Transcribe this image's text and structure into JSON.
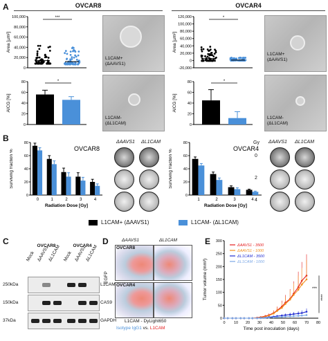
{
  "panels": {
    "A": "A",
    "B": "B",
    "C": "C",
    "D": "D",
    "E": "E"
  },
  "headers": {
    "left": "OVCAR8",
    "right": "OVCAR4"
  },
  "chart_data": [
    {
      "id": "a1",
      "type": "scatter",
      "title": "",
      "ylabel": "Area [µm²]",
      "ylim": [
        0,
        100000
      ],
      "yticks": [
        "0",
        "20,000",
        "40,000",
        "60,000",
        "80,000",
        "100,000"
      ],
      "significance": "***",
      "series": [
        {
          "name": "L1CAM+ (ΔAAVS1)",
          "color": "#000000",
          "mean": 14000,
          "sd": 10000
        },
        {
          "name": "L1CAM- (ΔL1CAM)",
          "color": "#4a90d9",
          "mean": 12000,
          "sd": 9000
        }
      ]
    },
    {
      "id": "a2",
      "type": "bar",
      "ylabel": "AICG [%]",
      "ylim": [
        0,
        80
      ],
      "yticks": [
        "0",
        "20",
        "40",
        "60",
        "80"
      ],
      "significance": "*",
      "values": [
        56,
        46
      ],
      "errors": [
        8,
        6
      ],
      "colors": [
        "#000000",
        "#4a90d9"
      ]
    },
    {
      "id": "a3",
      "type": "scatter",
      "ylabel": "Area [µm²]",
      "ylim": [
        -20000,
        120000
      ],
      "yticks": [
        "-20,000",
        "0",
        "20,000",
        "40,000",
        "60,000",
        "80,000",
        "100,000",
        "120,000"
      ],
      "significance": "*",
      "series": [
        {
          "name": "L1CAM+ (ΔAAVS1)",
          "color": "#000000",
          "mean": 5000,
          "sd": 10000
        },
        {
          "name": "L1CAM- (ΔL1CAM)",
          "color": "#4a90d9",
          "mean": 1000,
          "sd": 2000
        }
      ]
    },
    {
      "id": "a4",
      "type": "bar",
      "ylabel": "AICG [%]",
      "ylim": [
        0,
        80
      ],
      "yticks": [
        "0",
        "20",
        "40",
        "60",
        "80"
      ],
      "significance": "*",
      "values": [
        45,
        12
      ],
      "errors": [
        20,
        12
      ],
      "colors": [
        "#000000",
        "#4a90d9"
      ]
    },
    {
      "id": "b1",
      "type": "bar",
      "title": "OVCAR8",
      "xlabel": "Radiation Dose [Gy]",
      "ylabel": "Surviving fraction %",
      "ylim": [
        0,
        80
      ],
      "yticks": [
        "0",
        "20",
        "40",
        "60",
        "80"
      ],
      "categories": [
        "0",
        "1",
        "2",
        "3",
        "4"
      ],
      "series": [
        {
          "name": "L1CAM+ (ΔAAVS1)",
          "color": "#000000",
          "values": [
            75,
            55,
            35,
            28,
            20
          ],
          "errors": [
            4,
            5,
            6,
            6,
            4
          ]
        },
        {
          "name": "L1CAM- (ΔL1CAM)",
          "color": "#4a90d9",
          "values": [
            68,
            47,
            28,
            22,
            14
          ],
          "errors": [
            4,
            5,
            6,
            5,
            3
          ]
        }
      ]
    },
    {
      "id": "b2",
      "type": "bar",
      "title": "OVCAR4",
      "xlabel": "Radiation Dose [Gy]",
      "ylabel": "Surviving fraction %",
      "ylim": [
        0,
        80
      ],
      "yticks": [
        "0",
        "20",
        "40",
        "60",
        "80"
      ],
      "categories": [
        "1",
        "2",
        "3",
        "4"
      ],
      "series": [
        {
          "name": "L1CAM+ (ΔAAVS1)",
          "color": "#000000",
          "values": [
            55,
            32,
            12,
            8
          ],
          "errors": [
            3,
            3,
            2,
            1
          ]
        },
        {
          "name": "L1CAM- (ΔL1CAM)",
          "color": "#4a90d9",
          "values": [
            45,
            23,
            9,
            5
          ],
          "errors": [
            3,
            3,
            2,
            1
          ]
        }
      ]
    },
    {
      "id": "e",
      "type": "line",
      "xlabel": "Time post inoculation (days)",
      "ylabel": "Tumor volume (mm³)",
      "ylim": [
        0,
        300
      ],
      "xlim": [
        0,
        80
      ],
      "yticks": [
        "0",
        "50",
        "100",
        "150",
        "200",
        "250",
        "300"
      ],
      "xticks": [
        "0",
        "10",
        "20",
        "30",
        "40",
        "50",
        "60",
        "70",
        "80"
      ],
      "significance": [
        "***",
        "****"
      ],
      "x": [
        0,
        3,
        7,
        10,
        14,
        17,
        21,
        24,
        28,
        31,
        35,
        38,
        42,
        45,
        49,
        52,
        56,
        59,
        63,
        66,
        70
      ],
      "series": [
        {
          "name": "ΔAAVS1 - 3500",
          "color": "#e41a1c",
          "values": [
            0,
            0,
            0,
            0,
            0,
            0,
            0,
            0,
            2,
            4,
            8,
            12,
            20,
            30,
            45,
            60,
            75,
            95,
            120,
            145,
            165
          ]
        },
        {
          "name": "ΔAAVS1 - 1000",
          "color": "#f28e1c",
          "values": [
            0,
            0,
            0,
            0,
            0,
            0,
            0,
            0,
            1,
            3,
            6,
            10,
            18,
            28,
            40,
            55,
            72,
            90,
            110,
            130,
            150
          ]
        },
        {
          "name": "ΔL1CAM - 3500",
          "color": "#1f2bd1",
          "values": [
            0,
            0,
            0,
            0,
            0,
            0,
            0,
            0,
            0,
            1,
            2,
            4,
            6,
            8,
            10,
            12,
            14,
            16,
            18,
            20,
            25
          ]
        },
        {
          "name": "ΔL1CAM - 1000",
          "color": "#7aa7e6",
          "values": [
            0,
            0,
            0,
            0,
            0,
            0,
            0,
            0,
            0,
            0,
            1,
            2,
            3,
            4,
            5,
            6,
            7,
            8,
            9,
            10,
            12
          ]
        }
      ]
    }
  ],
  "micro": [
    {
      "line1": "L1CAM+",
      "line2": "(ΔAAVS1)"
    },
    {
      "line1": "L1CAM-",
      "line2": "(ΔL1CAM)"
    },
    {
      "line1": "L1CAM+",
      "line2": "(ΔAAVS1)"
    },
    {
      "line1": "L1CAM-",
      "line2": "(ΔL1CAM)"
    }
  ],
  "dishes": {
    "col1": "ΔAAVS1",
    "col2": "ΔL1CAM",
    "gy": "Gy",
    "rows": [
      "0",
      "2",
      "4"
    ]
  },
  "legend": {
    "item1": "L1CAM+ (ΔAAVS1)",
    "item2": "L1CAM- (ΔL1CAM)"
  },
  "blot": {
    "h1": "OVCAR8",
    "h2": "OVCAR4",
    "lanes": [
      "Mock",
      "ΔAAVS1",
      "ΔL1CAM",
      "Mock",
      "ΔAAVS1",
      "ΔL1CAM"
    ],
    "mw": [
      "250kDa",
      "150kDa",
      "37kDa"
    ],
    "proteins": [
      "L1CAM",
      "CAS9",
      "GAPDH"
    ]
  },
  "flow": {
    "c1": "ΔAAVS1",
    "c2": "ΔL1CAM",
    "r1": "OVCAR8",
    "r2": "OVCAR4",
    "yaxis": "EGFP",
    "xaxis": "L1CAM - DyLight650",
    "iso": "Isotype IgG1",
    "vs": " vs. ",
    "l1": "L1CAM"
  }
}
